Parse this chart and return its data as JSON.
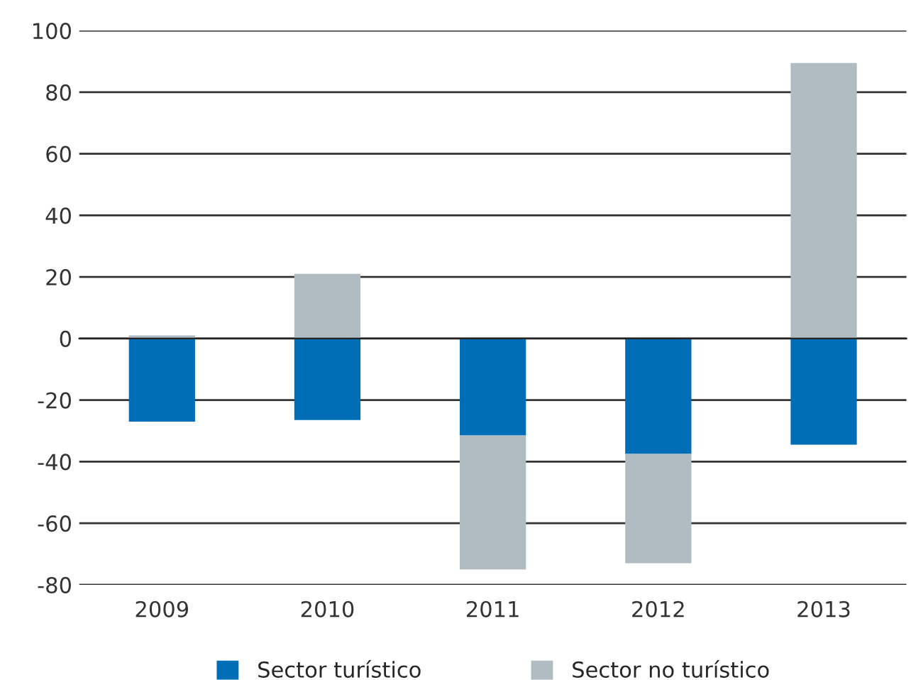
{
  "chart_data": {
    "type": "bar",
    "stacked": true,
    "categories": [
      "2009",
      "2010",
      "2011",
      "2012",
      "2013"
    ],
    "series": [
      {
        "name": "Sector turístico",
        "color": "#006eb6",
        "values": [
          -27,
          -26.5,
          -31.5,
          -37.5,
          -34.5
        ]
      },
      {
        "name": "Sector no turístico",
        "color": "#b0bcc1",
        "values": [
          1,
          21,
          -43.5,
          -35.5,
          89.5
        ]
      }
    ],
    "ylim": [
      -80,
      100
    ],
    "yticks": [
      -80,
      -60,
      -40,
      -20,
      0,
      20,
      40,
      60,
      80,
      100
    ],
    "grid": "y",
    "legend": "bottom"
  }
}
